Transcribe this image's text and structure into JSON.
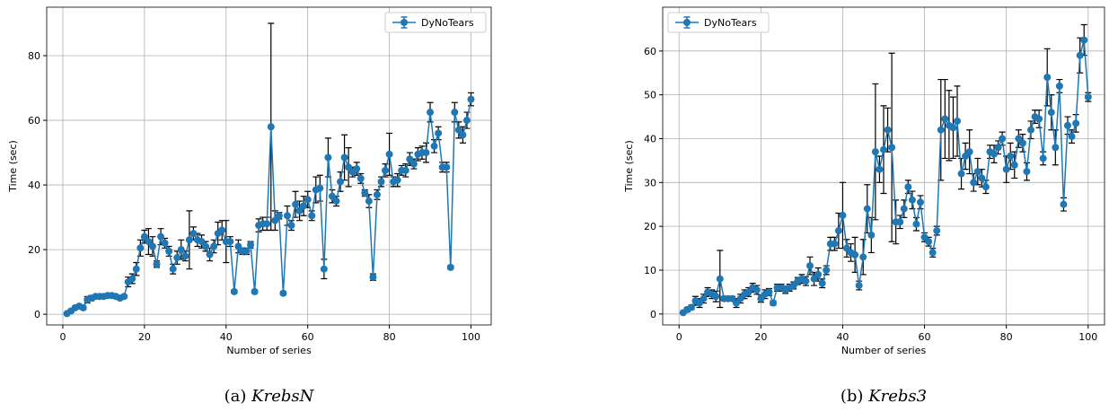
{
  "chart_data": [
    {
      "type": "line",
      "caption": {
        "label": "(a)",
        "name": "KrebsN"
      },
      "xlabel": "Number of series",
      "ylabel": "Time (sec)",
      "x": [
        1,
        2,
        3,
        4,
        5,
        6,
        7,
        8,
        9,
        10,
        11,
        12,
        13,
        14,
        15,
        16,
        17,
        18,
        19,
        20,
        21,
        22,
        23,
        24,
        25,
        26,
        27,
        28,
        29,
        30,
        31,
        32,
        33,
        34,
        35,
        36,
        37,
        38,
        39,
        40,
        41,
        42,
        43,
        44,
        45,
        46,
        47,
        48,
        49,
        50,
        51,
        52,
        53,
        54,
        55,
        56,
        57,
        58,
        59,
        60,
        61,
        62,
        63,
        64,
        65,
        66,
        67,
        68,
        69,
        70,
        71,
        72,
        73,
        74,
        75,
        76,
        77,
        78,
        79,
        80,
        81,
        82,
        83,
        84,
        85,
        86,
        87,
        88,
        89,
        90,
        91,
        92,
        93,
        94,
        95,
        96,
        97,
        98,
        99,
        100
      ],
      "series": [
        {
          "name": "DyNoTears",
          "color": "#1f77b4",
          "values": [
            0.2,
            1,
            2,
            2.5,
            2,
            4.5,
            5,
            5.5,
            5.5,
            5.5,
            5.8,
            5.8,
            5.5,
            5,
            5.5,
            10,
            11,
            14,
            20.5,
            24,
            22.5,
            21,
            15.5,
            24,
            22,
            19.5,
            14,
            17.5,
            20,
            18,
            23,
            25,
            23,
            22.5,
            21,
            18.5,
            21,
            25,
            26,
            22.5,
            22.5,
            7,
            21,
            19.5,
            19.5,
            21.5,
            7,
            27.5,
            28,
            28,
            58,
            29,
            30.5,
            6.5,
            30.5,
            27.5,
            34,
            32,
            33.5,
            35.5,
            30.5,
            38.5,
            39,
            14,
            48.5,
            36.5,
            35,
            41,
            48.5,
            45.5,
            44,
            45,
            42,
            37.5,
            35,
            11.5,
            37,
            41,
            44.5,
            49.5,
            41,
            41.5,
            44.5,
            44.5,
            48,
            46.5,
            49.5,
            50,
            50,
            62.5,
            52,
            56,
            45.5,
            45.5,
            14.5,
            62.5,
            57,
            55.5,
            60,
            66.5
          ],
          "errors": [
            0.3,
            0.5,
            0.5,
            0.5,
            0.5,
            1,
            0.8,
            0.5,
            0.5,
            0.5,
            0.5,
            0.5,
            0.5,
            0.5,
            0.5,
            1.5,
            1.5,
            2,
            2.5,
            2,
            4,
            3,
            1,
            2.5,
            1.5,
            1.5,
            1.5,
            2,
            3,
            1.5,
            9,
            2,
            2,
            2,
            1.5,
            2,
            2,
            3.5,
            3,
            6.5,
            1.5,
            0.5,
            2,
            1,
            1,
            1,
            0.5,
            2,
            2,
            2,
            32,
            3,
            1,
            0.5,
            3,
            1.5,
            4,
            3,
            3,
            2.5,
            1.5,
            4,
            4,
            3,
            6,
            2,
            1.5,
            3,
            7,
            6,
            1.5,
            2,
            1.5,
            1,
            2,
            1,
            1.5,
            1.5,
            2,
            6.5,
            1.5,
            2,
            1.5,
            2,
            2,
            1.5,
            2,
            2,
            3,
            3,
            2,
            2,
            1.5,
            1.5,
            0.5,
            3,
            2.5,
            2.5,
            2.5,
            2
          ]
        }
      ],
      "xlim": [
        -3.95,
        104.95
      ],
      "ylim": [
        -3.3,
        95
      ],
      "xticks": [
        0,
        20,
        40,
        60,
        80,
        100
      ],
      "yticks": [
        0,
        20,
        40,
        60,
        80
      ],
      "grid": true,
      "legend": "upper right"
    },
    {
      "type": "line",
      "caption": {
        "label": "(b)",
        "name": "Krebs3"
      },
      "xlabel": "Number of series",
      "ylabel": "Time (sec)",
      "x": [
        1,
        2,
        3,
        4,
        5,
        6,
        7,
        8,
        9,
        10,
        11,
        12,
        13,
        14,
        15,
        16,
        17,
        18,
        19,
        20,
        21,
        22,
        23,
        24,
        25,
        26,
        27,
        28,
        29,
        30,
        31,
        32,
        33,
        34,
        35,
        36,
        37,
        38,
        39,
        40,
        41,
        42,
        43,
        44,
        45,
        46,
        47,
        48,
        49,
        50,
        51,
        52,
        53,
        54,
        55,
        56,
        57,
        58,
        59,
        60,
        61,
        62,
        63,
        64,
        65,
        66,
        67,
        68,
        69,
        70,
        71,
        72,
        73,
        74,
        75,
        76,
        77,
        78,
        79,
        80,
        81,
        82,
        83,
        84,
        85,
        86,
        87,
        88,
        89,
        90,
        91,
        92,
        93,
        94,
        95,
        96,
        97,
        98,
        99,
        100
      ],
      "series": [
        {
          "name": "DyNoTears",
          "color": "#1f77b4",
          "values": [
            0.3,
            1,
            1.5,
            3,
            2.5,
            3.5,
            5,
            4.5,
            4,
            8,
            3.5,
            3.5,
            3.5,
            2.5,
            3.5,
            4.5,
            5,
            6,
            5.5,
            3.5,
            4.5,
            5,
            2.5,
            6,
            6,
            5.5,
            6,
            6.5,
            7.5,
            8,
            7.5,
            11,
            8,
            9,
            7,
            10,
            16,
            16,
            19,
            22.5,
            15,
            14,
            13.5,
            6.5,
            13,
            24,
            18,
            37,
            33,
            37.5,
            42,
            38,
            21,
            21,
            24,
            29,
            26,
            20.5,
            25.5,
            17.5,
            16.5,
            14,
            19,
            42,
            44.5,
            43,
            42.5,
            44,
            32,
            36,
            37,
            30,
            32.5,
            31,
            29,
            37,
            36.5,
            38,
            40,
            33,
            36,
            34,
            40,
            39,
            32.5,
            42,
            45,
            44.5,
            35.5,
            54,
            46,
            38,
            52,
            25,
            43,
            40.5,
            43.5,
            59,
            62.5,
            49.5
          ],
          "errors": [
            0.2,
            0.5,
            0.5,
            1,
            1,
            1,
            1,
            1,
            1.2,
            6.5,
            0.5,
            0.5,
            0.5,
            1,
            1,
            1,
            1,
            1,
            1,
            0.8,
            1,
            0.8,
            0.5,
            0.8,
            0.8,
            0.8,
            0.8,
            0.8,
            0.8,
            1,
            1,
            2,
            1.5,
            1.5,
            1,
            1,
            1.5,
            1.5,
            4,
            7.5,
            2,
            2,
            4,
            1,
            4,
            5.5,
            4,
            15.5,
            3,
            10,
            5,
            21.5,
            5,
            1.5,
            2,
            1.5,
            2,
            1.5,
            1.5,
            1,
            1,
            1,
            1,
            11.5,
            9,
            8,
            7,
            8,
            3.5,
            3,
            5,
            2,
            3,
            2,
            1.5,
            1.5,
            2,
            1.5,
            1.5,
            3,
            3,
            3,
            2,
            2,
            2,
            2,
            1.5,
            2,
            1.5,
            6.5,
            4,
            4,
            1.5,
            1.5,
            2,
            1.5,
            2,
            4,
            3.5,
            1
          ]
        }
      ],
      "xlim": [
        -4,
        104
      ],
      "ylim": [
        -2.5,
        70
      ],
      "xticks": [
        0,
        20,
        40,
        60,
        80,
        100
      ],
      "yticks": [
        0,
        10,
        20,
        30,
        40,
        50,
        60
      ],
      "grid": true,
      "legend": "upper left"
    }
  ]
}
